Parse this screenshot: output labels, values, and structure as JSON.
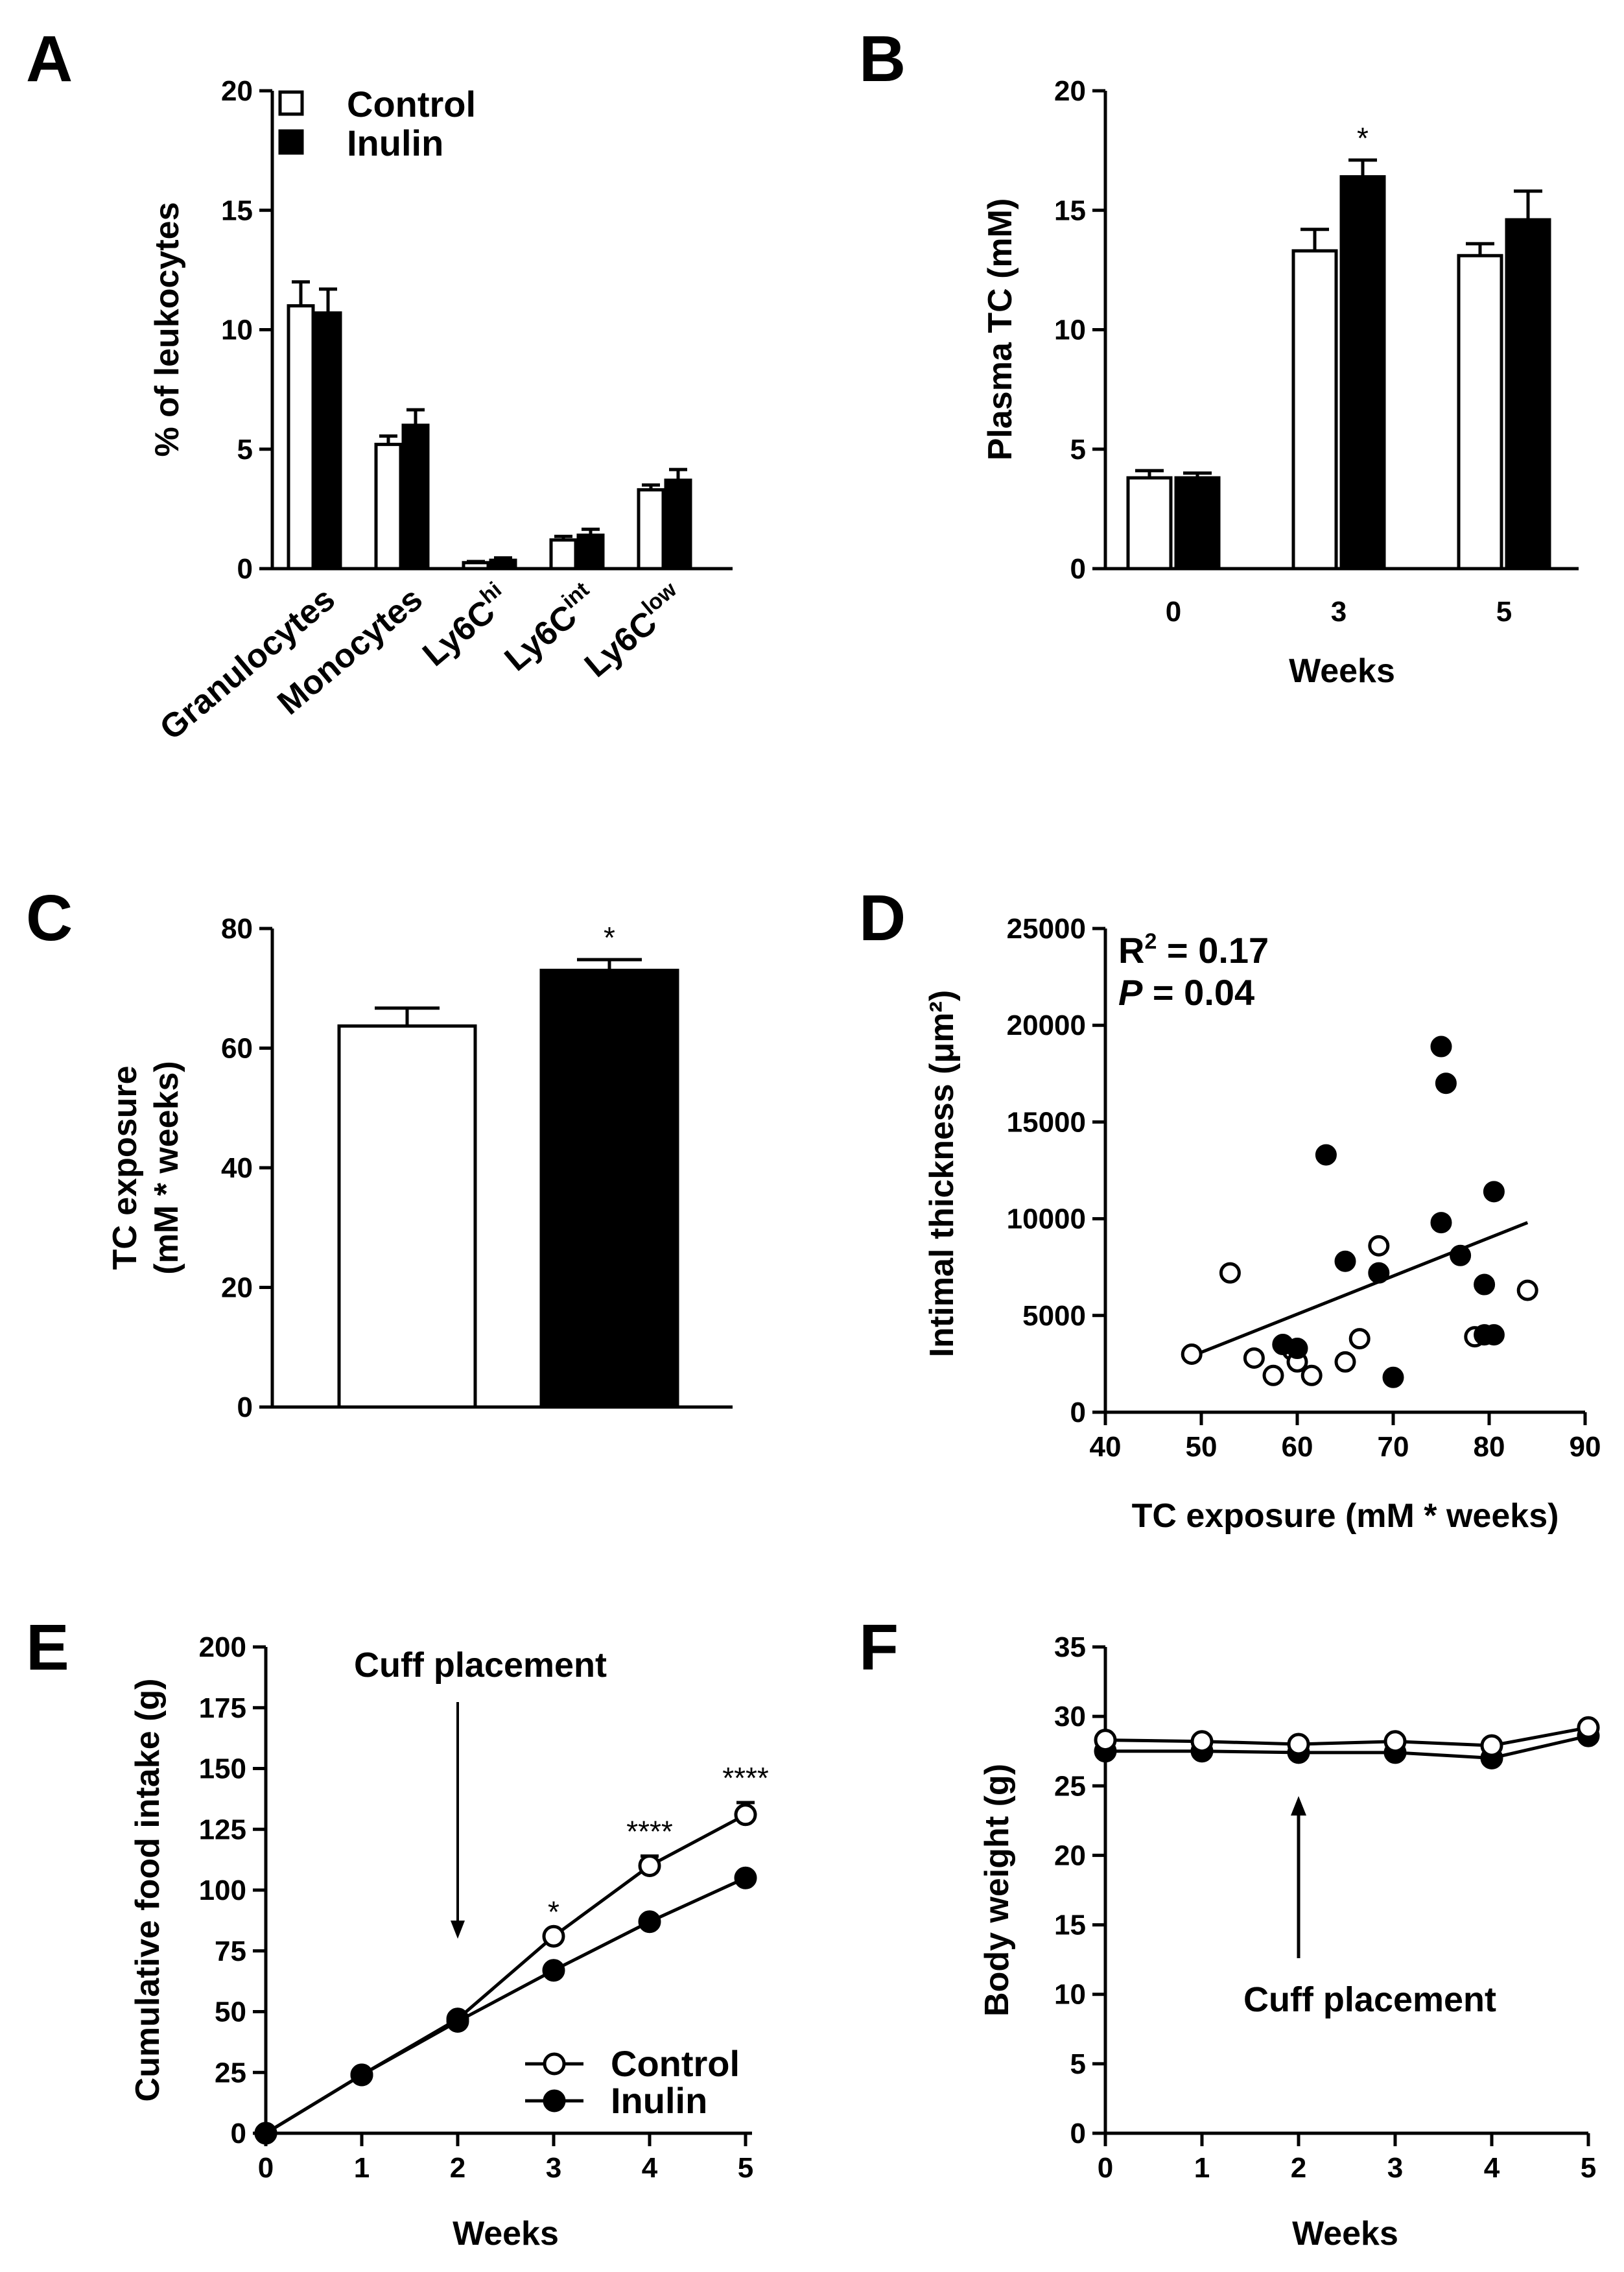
{
  "chart_data": [
    {
      "panel": "A",
      "type": "bar",
      "ylabel": "% of leukocytes",
      "ylim": [
        0,
        20
      ],
      "yticks": [
        0,
        5,
        10,
        15,
        20
      ],
      "categories": [
        "Granulocytes",
        "Monocytes",
        "Ly6C^hi",
        "Ly6C^int",
        "Ly6C^low"
      ],
      "category_labels": [
        {
          "base": "Granulocytes",
          "sup": ""
        },
        {
          "base": "Monocytes",
          "sup": ""
        },
        {
          "base": "Ly6C",
          "sup": "hi"
        },
        {
          "base": "Ly6C",
          "sup": "int"
        },
        {
          "base": "Ly6C",
          "sup": "low"
        }
      ],
      "series": [
        {
          "name": "Control",
          "fill": "#ffffff",
          "values": [
            11.0,
            5.2,
            0.25,
            1.2,
            3.3
          ],
          "errors": [
            1.0,
            0.35,
            0.05,
            0.15,
            0.2
          ]
        },
        {
          "name": "Inulin",
          "fill": "#000000",
          "values": [
            10.7,
            6.0,
            0.35,
            1.4,
            3.7
          ],
          "errors": [
            1.0,
            0.65,
            0.1,
            0.25,
            0.45
          ]
        }
      ],
      "legend": "top-right"
    },
    {
      "panel": "B",
      "type": "bar",
      "xlabel": "Weeks",
      "ylabel": "Plasma TC (mM)",
      "ylim": [
        0,
        20
      ],
      "yticks": [
        0,
        5,
        10,
        15,
        20
      ],
      "categories": [
        "0",
        "3",
        "5"
      ],
      "series": [
        {
          "name": "Control",
          "fill": "#ffffff",
          "values": [
            3.8,
            13.3,
            13.1
          ],
          "errors": [
            0.3,
            0.9,
            0.5
          ]
        },
        {
          "name": "Inulin",
          "fill": "#000000",
          "values": [
            3.8,
            16.4,
            14.6
          ],
          "errors": [
            0.2,
            0.7,
            1.2
          ]
        }
      ],
      "annotations": [
        {
          "category": "3",
          "series": "Inulin",
          "text": "*"
        }
      ]
    },
    {
      "panel": "C",
      "type": "bar",
      "ylabel_lines": [
        "TC exposure",
        "(mM * weeks)"
      ],
      "ylim": [
        0,
        80
      ],
      "yticks": [
        0,
        20,
        40,
        60,
        80
      ],
      "series": [
        {
          "name": "Control",
          "fill": "#ffffff",
          "value": 63.7,
          "error": 3.0
        },
        {
          "name": "Inulin",
          "fill": "#000000",
          "value": 73.0,
          "error": 1.8,
          "annotation": "*"
        }
      ]
    },
    {
      "panel": "D",
      "type": "scatter",
      "xlabel": "TC exposure (mM * weeks)",
      "ylabel": "Intimal thickness (μm²)",
      "xlim": [
        40,
        90
      ],
      "ylim": [
        0,
        25000
      ],
      "xticks": [
        40,
        50,
        60,
        70,
        80,
        90
      ],
      "yticks": [
        0,
        5000,
        10000,
        15000,
        20000,
        25000
      ],
      "stats": {
        "r2_label": "R",
        "r2_sup": "2",
        "r2_value": " = 0.17",
        "p_label": "P",
        "p_value": " = 0.04"
      },
      "series": [
        {
          "name": "Control",
          "marker": "open",
          "points": [
            [
              49,
              3000
            ],
            [
              53,
              7200
            ],
            [
              55.5,
              2800
            ],
            [
              57.5,
              1900
            ],
            [
              59.5,
              3200
            ],
            [
              60,
              2600
            ],
            [
              61.5,
              1900
            ],
            [
              65,
              2600
            ],
            [
              66.5,
              3800
            ],
            [
              68.5,
              8600
            ],
            [
              78.5,
              3900
            ],
            [
              84,
              6300
            ]
          ]
        },
        {
          "name": "Inulin",
          "marker": "filled",
          "points": [
            [
              58.5,
              3500
            ],
            [
              60,
              3300
            ],
            [
              63,
              13300
            ],
            [
              65,
              7800
            ],
            [
              68.5,
              7200
            ],
            [
              70,
              1800
            ],
            [
              75,
              18900
            ],
            [
              75,
              9800
            ],
            [
              75.5,
              17000
            ],
            [
              77,
              8100
            ],
            [
              79.5,
              6600
            ],
            [
              79.5,
              4000
            ],
            [
              80.5,
              4000
            ],
            [
              80.5,
              11400
            ]
          ]
        }
      ],
      "regression": {
        "x": [
          49,
          84
        ],
        "y": [
          2900,
          9800
        ]
      }
    },
    {
      "panel": "E",
      "type": "line",
      "xlabel": "Weeks",
      "ylabel": "Cumulative food intake (g)",
      "xlim": [
        0,
        5
      ],
      "ylim": [
        0,
        200
      ],
      "xticks": [
        0,
        1,
        2,
        3,
        4,
        5
      ],
      "yticks": [
        0,
        25,
        50,
        75,
        100,
        125,
        150,
        175,
        200
      ],
      "x": [
        0,
        1,
        2,
        3,
        4,
        5
      ],
      "series": [
        {
          "name": "Control",
          "marker": "open",
          "values": [
            0,
            24,
            47,
            81,
            110,
            131
          ],
          "errors": [
            0,
            0,
            0,
            0,
            4,
            5
          ]
        },
        {
          "name": "Inulin",
          "marker": "filled",
          "values": [
            0,
            24,
            46,
            67,
            87,
            105
          ],
          "errors": [
            0,
            0,
            0,
            0,
            0,
            0
          ]
        }
      ],
      "annotations": [
        {
          "x": 3,
          "text": "*"
        },
        {
          "x": 4,
          "text": "****"
        },
        {
          "x": 5,
          "text": "****"
        },
        {
          "x": 2,
          "text": "Cuff placement",
          "arrow": "down"
        }
      ],
      "legend": "bottom-right"
    },
    {
      "panel": "F",
      "type": "line",
      "xlabel": "Weeks",
      "ylabel": "Body weight (g)",
      "xlim": [
        0,
        5
      ],
      "ylim": [
        0,
        35
      ],
      "xticks": [
        0,
        1,
        2,
        3,
        4,
        5
      ],
      "yticks": [
        0,
        5,
        10,
        15,
        20,
        25,
        30,
        35
      ],
      "x": [
        0,
        1,
        2,
        3,
        4,
        5
      ],
      "series": [
        {
          "name": "Control",
          "marker": "open",
          "values": [
            28.3,
            28.2,
            28.0,
            28.2,
            27.9,
            29.2
          ]
        },
        {
          "name": "Inulin",
          "marker": "filled",
          "values": [
            27.5,
            27.5,
            27.4,
            27.4,
            27.0,
            28.6
          ]
        }
      ],
      "annotations": [
        {
          "x": 2,
          "text": "Cuff placement",
          "arrow": "up"
        }
      ]
    }
  ]
}
